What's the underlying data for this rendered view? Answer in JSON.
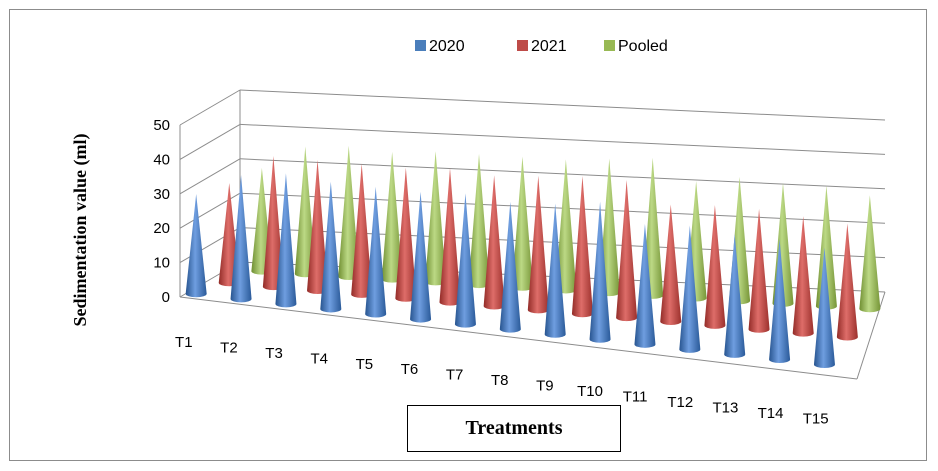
{
  "chart_data": {
    "type": "bar",
    "style": "3d-cone",
    "categories": [
      "T1",
      "T2",
      "T3",
      "T4",
      "T5",
      "T6",
      "T7",
      "T8",
      "T9",
      "T10",
      "T11",
      "T12",
      "T13",
      "T14",
      "T15"
    ],
    "series": [
      {
        "name": "2020",
        "color": "#4a7ebb",
        "values": [
          29,
          36,
          38,
          37,
          37,
          37,
          38,
          37,
          38,
          40,
          35,
          36,
          35,
          35,
          34
        ]
      },
      {
        "name": "2021",
        "color": "#be4b48",
        "values": [
          29,
          38,
          38,
          38,
          38,
          39,
          38,
          39,
          40,
          40,
          34,
          35,
          35,
          34,
          33
        ]
      },
      {
        "name": "Pooled",
        "color": "#98b954",
        "values": [
          30,
          37,
          38,
          37,
          38,
          38,
          38,
          38,
          39,
          40,
          34,
          36,
          35,
          35,
          33
        ]
      }
    ],
    "ylabel": "Sedimentation value (ml)",
    "xlabel": "Treatments",
    "ylim": [
      0,
      50
    ],
    "yticks": [
      0,
      10,
      20,
      30,
      40,
      50
    ],
    "grid": true,
    "legend_position": "top"
  }
}
